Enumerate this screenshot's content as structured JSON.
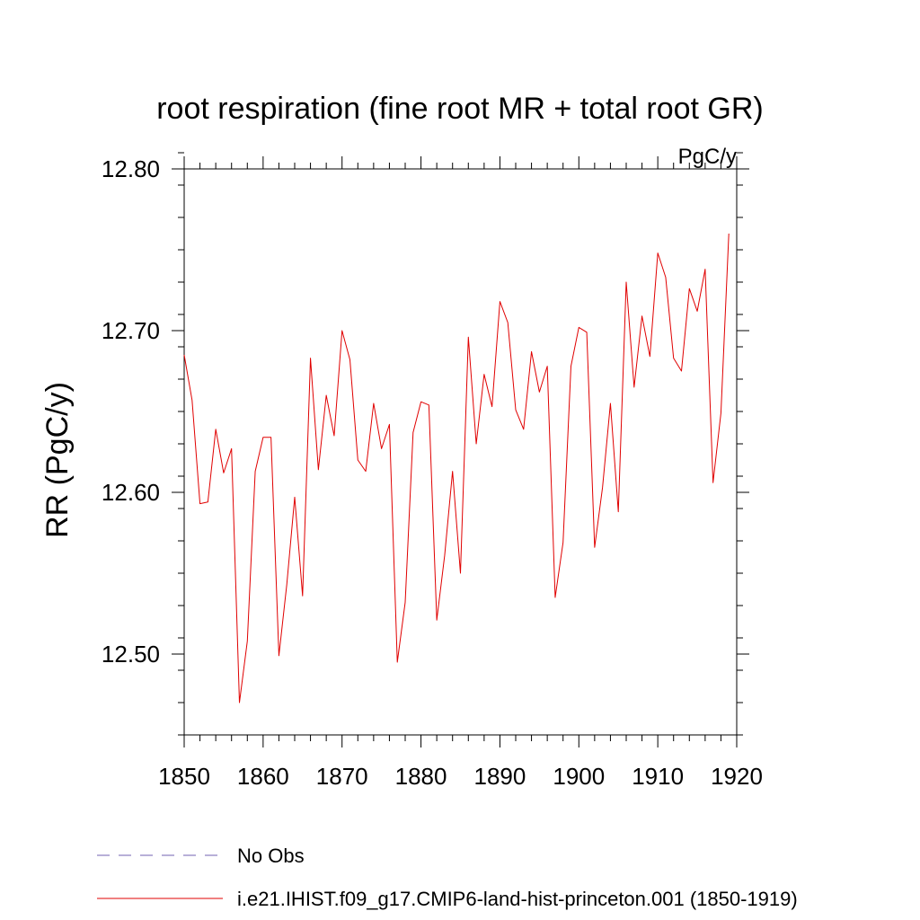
{
  "chart_data": {
    "type": "line",
    "title": "root respiration (fine root MR + total root GR)",
    "units": "PgC/y",
    "ylabel": "RR  (PgC/y)",
    "xlim": [
      1850,
      1920
    ],
    "ylim": [
      12.45,
      12.8
    ],
    "xticks": [
      1850,
      1860,
      1870,
      1880,
      1890,
      1900,
      1910,
      1920
    ],
    "xtick_labels": [
      "1850",
      "1860",
      "1870",
      "1880",
      "1890",
      "1900",
      "1910",
      "1920"
    ],
    "yticks": [
      12.5,
      12.6,
      12.7,
      12.8
    ],
    "ytick_labels": [
      "12.50",
      "12.60",
      "12.70",
      "12.80"
    ],
    "legend": [
      {
        "label": "No Obs",
        "color": "#7060b0",
        "dash": true
      },
      {
        "label": "i.e21.IHIST.f09_g17.CMIP6-land-hist-princeton.001 (1850-1919)",
        "color": "#e00000",
        "dash": false
      }
    ],
    "series": [
      {
        "name": "i.e21.IHIST.f09_g17.CMIP6-land-hist-princeton.001 (1850-1919)",
        "color": "#e00000",
        "x": [
          1850,
          1851,
          1852,
          1853,
          1854,
          1855,
          1856,
          1857,
          1858,
          1859,
          1860,
          1861,
          1862,
          1863,
          1864,
          1865,
          1866,
          1867,
          1868,
          1869,
          1870,
          1871,
          1872,
          1873,
          1874,
          1875,
          1876,
          1877,
          1878,
          1879,
          1880,
          1881,
          1882,
          1883,
          1884,
          1885,
          1886,
          1887,
          1888,
          1889,
          1890,
          1891,
          1892,
          1893,
          1894,
          1895,
          1896,
          1897,
          1898,
          1899,
          1900,
          1901,
          1902,
          1903,
          1904,
          1905,
          1906,
          1907,
          1908,
          1909,
          1910,
          1911,
          1912,
          1913,
          1914,
          1915,
          1916,
          1917,
          1918,
          1919
        ],
        "values": [
          12.685,
          12.657,
          12.593,
          12.594,
          12.639,
          12.612,
          12.627,
          12.47,
          12.508,
          12.613,
          12.634,
          12.634,
          12.499,
          12.543,
          12.597,
          12.536,
          12.683,
          12.614,
          12.66,
          12.635,
          12.7,
          12.682,
          12.62,
          12.613,
          12.655,
          12.627,
          12.642,
          12.495,
          12.532,
          12.637,
          12.656,
          12.654,
          12.521,
          12.561,
          12.613,
          12.55,
          12.696,
          12.63,
          12.673,
          12.653,
          12.718,
          12.705,
          12.651,
          12.639,
          12.687,
          12.662,
          12.678,
          12.535,
          12.569,
          12.678,
          12.702,
          12.699,
          12.566,
          12.603,
          12.655,
          12.588,
          12.73,
          12.665,
          12.709,
          12.684,
          12.748,
          12.733,
          12.683,
          12.675,
          12.726,
          12.712,
          12.738,
          12.606,
          12.649,
          12.76
        ]
      }
    ]
  }
}
